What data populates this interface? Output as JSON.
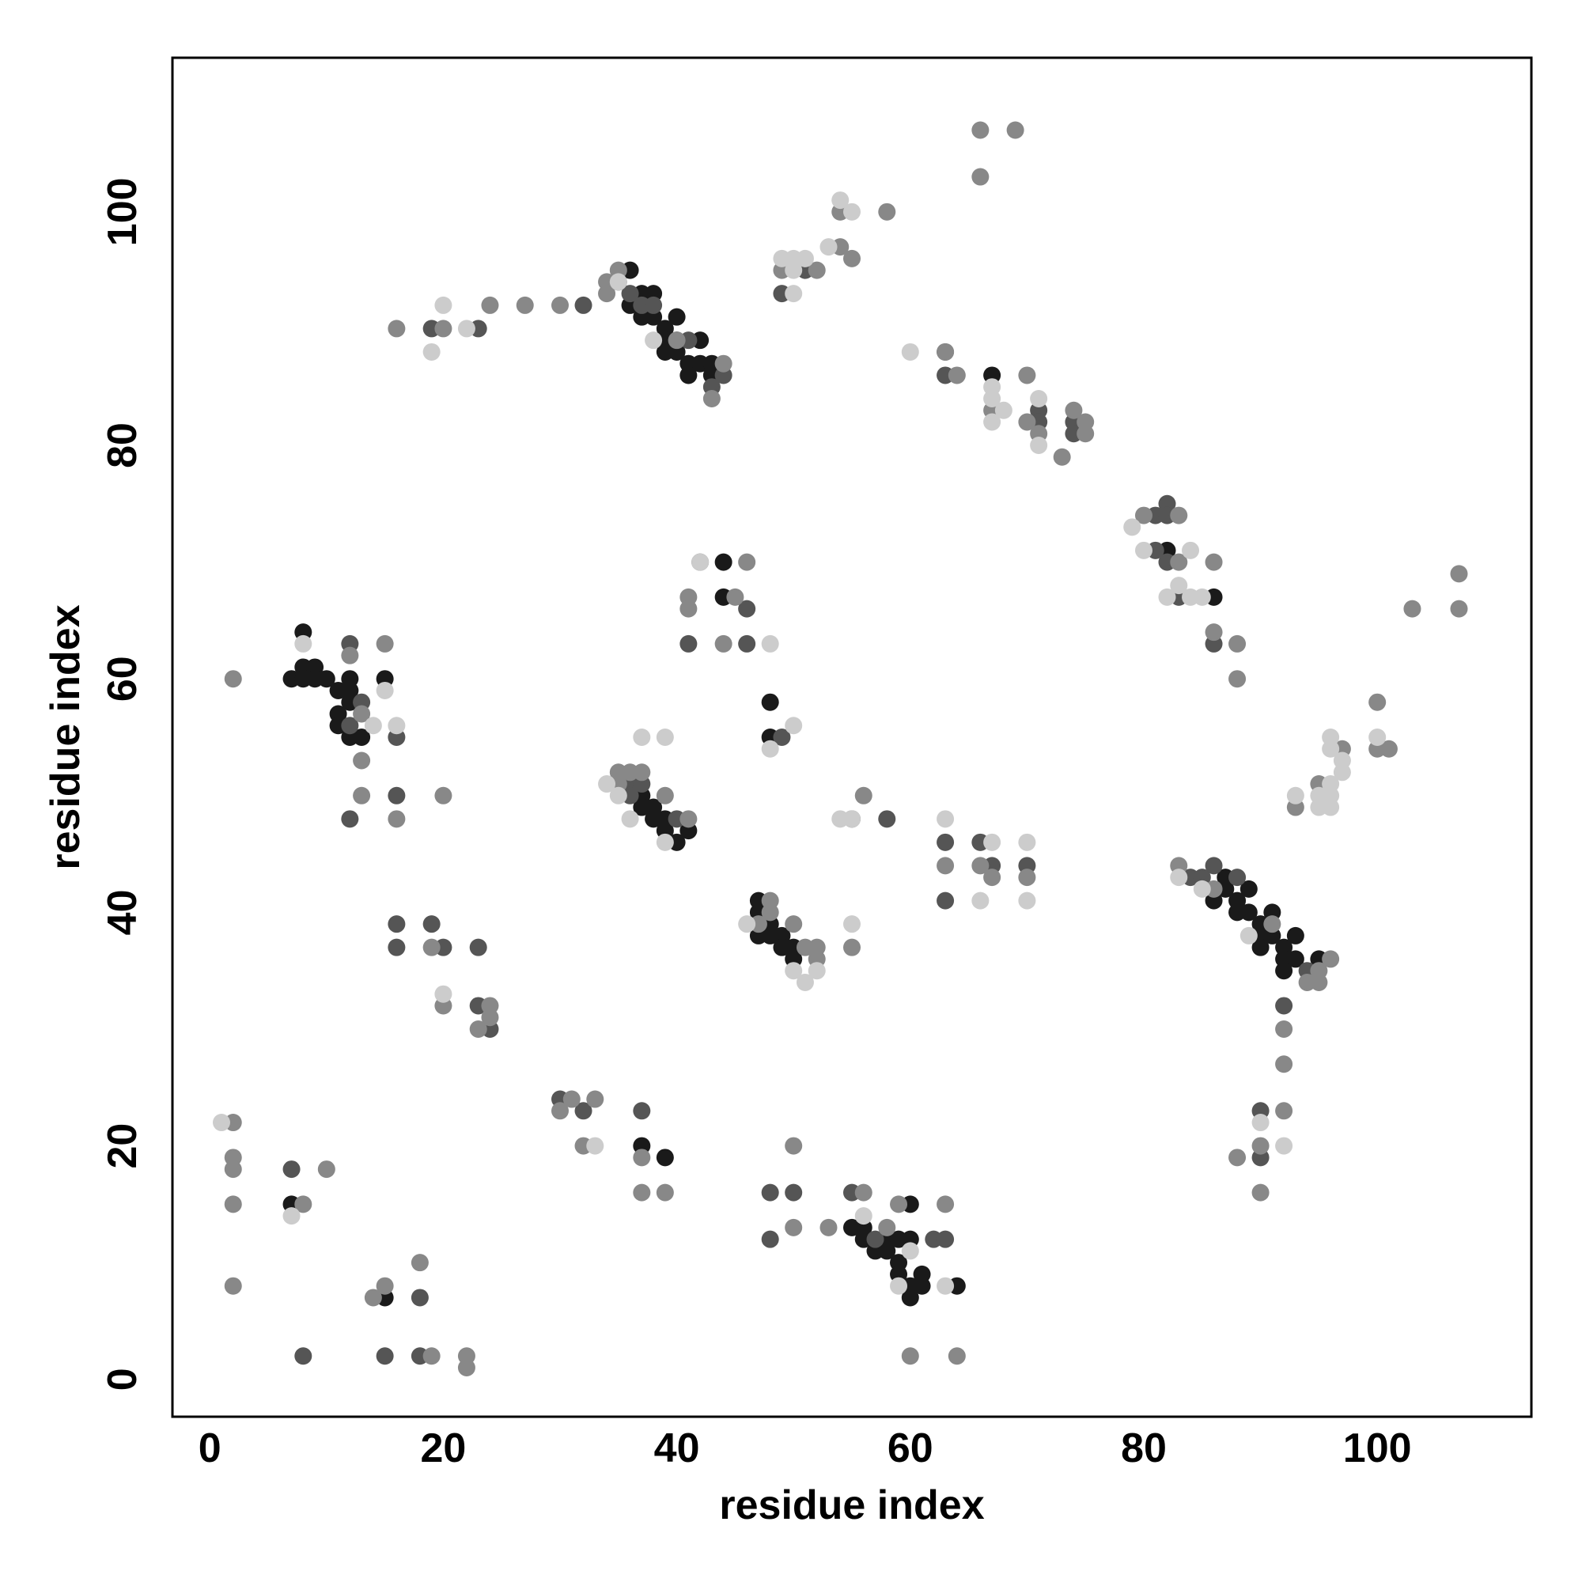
{
  "chart_data": {
    "type": "scatter",
    "x_label": "residue index",
    "y_label": "residue index",
    "xlim": [
      -3.2,
      113.2
    ],
    "ylim": [
      -3.2,
      113.2
    ],
    "xticks": [
      0,
      20,
      40,
      60,
      80,
      100
    ],
    "yticks": [
      0,
      20,
      40,
      60,
      80,
      100
    ],
    "grid": false,
    "series": [
      {
        "color": "#1a1a1a",
        "x": [
          8,
          7,
          8,
          9,
          8,
          9,
          10,
          11,
          12,
          12,
          11,
          11,
          12,
          13,
          15,
          12,
          36,
          36,
          37,
          38,
          37,
          38,
          39,
          40,
          39,
          40,
          40,
          41,
          42,
          42,
          43,
          43,
          41,
          39,
          67,
          37,
          38,
          38,
          39,
          39,
          40,
          41,
          37,
          47,
          47,
          48,
          47,
          49,
          49,
          50,
          50,
          48,
          48,
          48,
          87,
          86,
          87,
          88,
          88,
          89,
          89,
          90,
          90,
          91,
          91,
          90,
          92,
          92,
          93,
          93,
          92,
          95,
          86,
          82,
          55,
          56,
          57,
          58,
          58,
          59,
          59,
          59,
          60,
          60,
          60,
          61,
          61,
          60,
          64,
          56,
          7,
          15,
          39,
          37,
          44,
          44
        ],
        "values": [
          64,
          60,
          61,
          61,
          60,
          60,
          60,
          59,
          60,
          58,
          57,
          56,
          55,
          55,
          60,
          59,
          95,
          92,
          93,
          93,
          91,
          91,
          90,
          91,
          89,
          89,
          88,
          87,
          89,
          87,
          87,
          86,
          86,
          88,
          86,
          50,
          49,
          48,
          48,
          47,
          46,
          47,
          49,
          41,
          40,
          39,
          38,
          38,
          37,
          37,
          36,
          38,
          58,
          55,
          43,
          41,
          42,
          41,
          40,
          42,
          40,
          39,
          38,
          40,
          38,
          37,
          37,
          36,
          38,
          36,
          35,
          36,
          67,
          71,
          13,
          12,
          11,
          11,
          12,
          12,
          10,
          9,
          8,
          7,
          15,
          8,
          9,
          12,
          8,
          13,
          15,
          7,
          19,
          20,
          70,
          67
        ]
      },
      {
        "color": "#555555",
        "x": [
          19,
          23,
          32,
          36,
          35,
          37,
          38,
          41,
          43,
          44,
          49,
          51,
          63,
          63,
          71,
          71,
          74,
          74,
          81,
          82,
          82,
          81,
          82,
          83,
          86,
          12,
          16,
          12,
          16,
          16,
          19,
          20,
          23,
          23,
          24,
          36,
          36,
          37,
          40,
          46,
          46,
          41,
          42,
          49,
          55,
          58,
          63,
          66,
          67,
          70,
          63,
          84,
          85,
          86,
          88,
          94,
          92,
          90,
          90,
          30,
          32,
          37,
          48,
          50,
          48,
          55,
          57,
          62,
          63,
          7,
          16,
          18,
          8,
          15,
          18,
          13,
          12
        ],
        "values": [
          90,
          90,
          92,
          93,
          94,
          92,
          92,
          89,
          85,
          86,
          93,
          95,
          88,
          86,
          83,
          82,
          82,
          81,
          74,
          75,
          74,
          71,
          70,
          67,
          63,
          63,
          55,
          48,
          50,
          39,
          39,
          37,
          37,
          32,
          30,
          51,
          50,
          51,
          48,
          66,
          63,
          63,
          70,
          55,
          48,
          48,
          46,
          46,
          44,
          44,
          41,
          43,
          43,
          44,
          43,
          35,
          32,
          23,
          19,
          24,
          23,
          23,
          16,
          16,
          12,
          16,
          12,
          12,
          12,
          18,
          37,
          7,
          2,
          2,
          2,
          58,
          56
        ]
      },
      {
        "color": "#888888",
        "x": [
          2,
          16,
          20,
          24,
          27,
          30,
          34,
          35,
          34,
          44,
          43,
          40,
          54,
          54,
          55,
          52,
          49,
          58,
          63,
          64,
          67,
          70,
          70,
          71,
          74,
          75,
          75,
          73,
          80,
          83,
          83,
          86,
          86,
          88,
          41,
          41,
          45,
          46,
          44,
          13,
          13,
          13,
          15,
          16,
          20,
          19,
          20,
          24,
          24,
          23,
          35,
          35,
          36,
          37,
          39,
          41,
          47,
          48,
          48,
          50,
          51,
          52,
          52,
          55,
          56,
          63,
          66,
          67,
          70,
          83,
          86,
          91,
          95,
          96,
          94,
          95,
          93,
          95,
          97,
          100,
          100,
          101,
          103,
          107,
          107,
          92,
          92,
          92,
          90,
          90,
          88,
          2,
          2,
          2,
          2,
          2,
          10,
          8,
          30,
          31,
          33,
          32,
          37,
          37,
          39,
          50,
          50,
          53,
          56,
          58,
          59,
          63,
          14,
          15,
          18,
          19,
          22,
          22,
          60,
          64,
          66,
          69,
          66,
          88,
          12
        ],
        "values": [
          60,
          90,
          90,
          92,
          92,
          92,
          94,
          95,
          93,
          87,
          84,
          89,
          97,
          100,
          96,
          95,
          95,
          100,
          88,
          86,
          83,
          86,
          82,
          81,
          83,
          82,
          81,
          79,
          74,
          74,
          70,
          70,
          64,
          63,
          67,
          66,
          67,
          70,
          63,
          57,
          53,
          50,
          63,
          48,
          50,
          37,
          32,
          32,
          31,
          30,
          51,
          52,
          52,
          52,
          50,
          48,
          39,
          41,
          40,
          39,
          37,
          36,
          37,
          37,
          50,
          44,
          44,
          43,
          43,
          44,
          42,
          39,
          35,
          36,
          34,
          34,
          49,
          51,
          54,
          58,
          54,
          54,
          66,
          69,
          66,
          30,
          27,
          23,
          20,
          16,
          19,
          22,
          19,
          18,
          15,
          8,
          18,
          15,
          23,
          24,
          24,
          20,
          19,
          16,
          16,
          20,
          13,
          13,
          16,
          13,
          15,
          15,
          7,
          8,
          10,
          2,
          2,
          1,
          2,
          2,
          107,
          107,
          103,
          60,
          62
        ]
      },
      {
        "color": "#cccccc",
        "x": [
          1,
          8,
          20,
          22,
          19,
          35,
          38,
          48,
          42,
          50,
          49,
          50,
          50,
          51,
          53,
          55,
          50,
          54,
          60,
          67,
          67,
          67,
          68,
          71,
          71,
          79,
          80,
          82,
          83,
          84,
          85,
          84,
          15,
          14,
          16,
          37,
          39,
          34,
          35,
          36,
          39,
          46,
          50,
          51,
          52,
          55,
          54,
          48,
          63,
          67,
          66,
          70,
          70,
          83,
          85,
          89,
          93,
          95,
          95,
          96,
          96,
          96,
          96,
          96,
          97,
          97,
          100,
          92,
          90,
          20,
          33,
          7,
          56,
          59,
          60,
          63,
          55
        ],
        "values": [
          22,
          63,
          92,
          90,
          88,
          94,
          89,
          63,
          70,
          56,
          96,
          96,
          95,
          96,
          97,
          100,
          93,
          101,
          88,
          85,
          84,
          82,
          83,
          84,
          80,
          73,
          71,
          67,
          68,
          67,
          67,
          71,
          59,
          56,
          56,
          55,
          55,
          51,
          50,
          48,
          46,
          39,
          35,
          34,
          35,
          39,
          48,
          54,
          48,
          46,
          41,
          46,
          41,
          43,
          42,
          38,
          50,
          50,
          49,
          49,
          50,
          51,
          54,
          55,
          53,
          52,
          55,
          20,
          22,
          33,
          20,
          14,
          14,
          8,
          11,
          8,
          48
        ]
      }
    ]
  }
}
